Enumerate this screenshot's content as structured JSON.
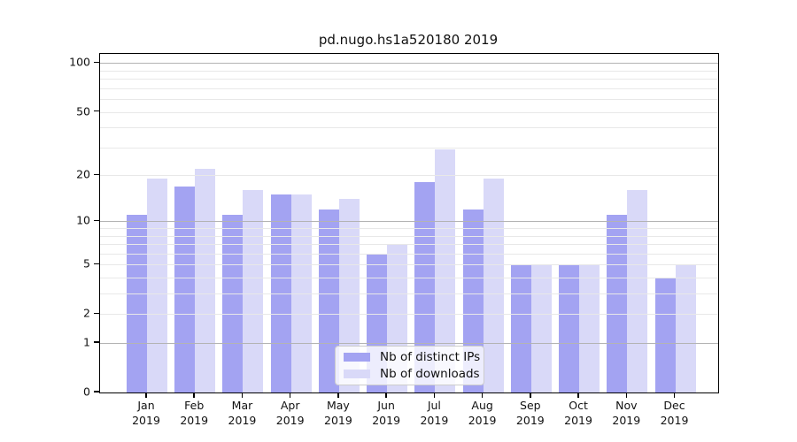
{
  "title": "pd.nugo.hs1a520180 2019",
  "chart_data": {
    "type": "bar",
    "title": "pd.nugo.hs1a520180 2019",
    "scale": "log1p",
    "categories": [
      "Jan",
      "Feb",
      "Mar",
      "Apr",
      "May",
      "Jun",
      "Jul",
      "Aug",
      "Sep",
      "Oct",
      "Nov",
      "Dec"
    ],
    "category_sublabel": "2019",
    "series": [
      {
        "name": "Nb of distinct IPs",
        "color": "#a3a3f2",
        "values": [
          11,
          17,
          11,
          15,
          12,
          6,
          18,
          12,
          5,
          5,
          11,
          4
        ]
      },
      {
        "name": "Nb of downloads",
        "color": "#d9d9f8",
        "values": [
          19,
          22,
          16,
          15,
          14,
          7,
          29,
          19,
          5,
          5,
          16,
          5
        ]
      }
    ],
    "ylim": [
      0,
      114
    ],
    "ytick_labels": [
      0,
      1,
      2,
      5,
      10,
      20,
      50,
      100
    ],
    "grid_major_values": [
      1,
      10,
      100
    ],
    "grid_minor_values": [
      2,
      3,
      4,
      5,
      6,
      7,
      8,
      9,
      20,
      30,
      40,
      50,
      60,
      70,
      80,
      90
    ],
    "grid_on": true,
    "legend_position": "lower-center"
  },
  "colors": {
    "background": "#ffffff",
    "axis": "#000000",
    "grid_major": "#b3b3b3",
    "grid_minor": "#e8e8e8",
    "legend_border": "#cccccc",
    "ips_bar": "#a3a3f2",
    "downloads_bar": "#d9d9f8"
  }
}
